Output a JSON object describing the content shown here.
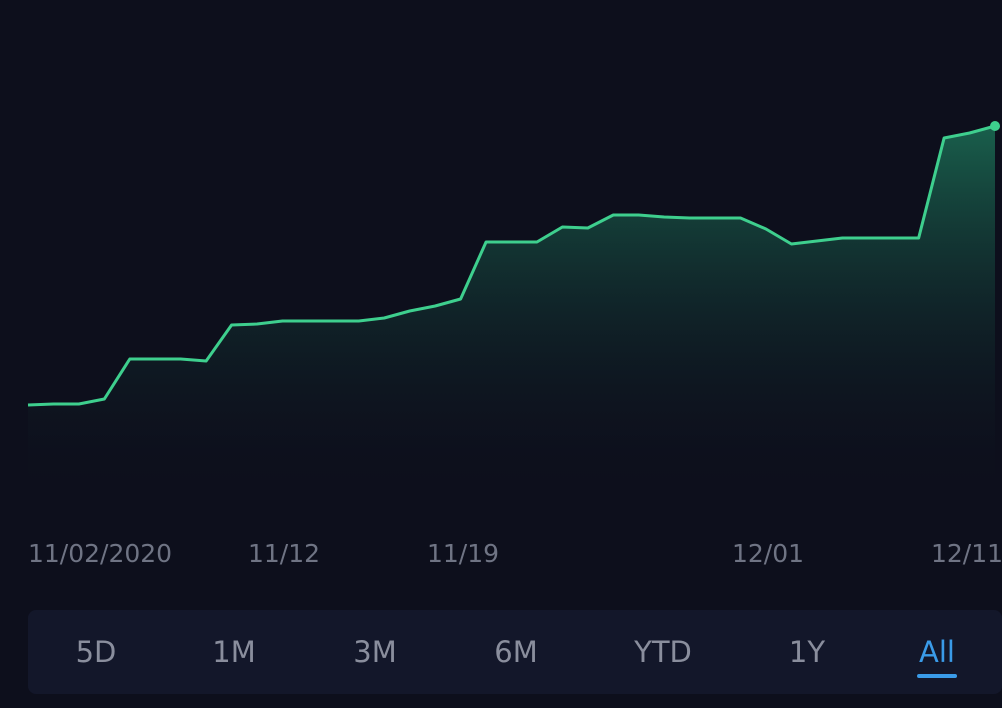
{
  "chart_data": {
    "type": "area",
    "x": [
      0,
      1,
      2,
      3,
      4,
      5,
      6,
      7,
      8,
      9,
      10,
      11,
      12,
      13,
      14,
      15,
      16,
      17,
      18,
      19,
      20,
      21,
      22,
      23,
      24,
      25,
      26,
      27,
      28,
      29,
      30,
      31,
      32,
      33,
      34,
      35,
      36,
      37,
      38
    ],
    "values": [
      405,
      404,
      404,
      399,
      359,
      359,
      359,
      361,
      325,
      324,
      321,
      321,
      321,
      321,
      318,
      311,
      306,
      299,
      242,
      242,
      242,
      227,
      228,
      215,
      215,
      217,
      218,
      218,
      218,
      229,
      244,
      241,
      238,
      238,
      238,
      238,
      138,
      133,
      126
    ],
    "x_ticks": [
      {
        "label": "11/02/2020",
        "index": 0
      },
      {
        "label": "11/12",
        "index": 10
      },
      {
        "label": "11/19",
        "index": 17
      },
      {
        "label": "12/01",
        "index": 29
      },
      {
        "label": "12/11",
        "index": 38
      }
    ],
    "grid": false,
    "line_color": "#3ecf8e",
    "fill_color": "#1d7a5c",
    "background": "#0d0f1c"
  },
  "range_selector": {
    "options": [
      {
        "label": "5D",
        "active": false
      },
      {
        "label": "1M",
        "active": false
      },
      {
        "label": "3M",
        "active": false
      },
      {
        "label": "6M",
        "active": false
      },
      {
        "label": "YTD",
        "active": false
      },
      {
        "label": "1Y",
        "active": false
      },
      {
        "label": "All",
        "active": true
      }
    ],
    "active_color": "#3a9be8"
  }
}
